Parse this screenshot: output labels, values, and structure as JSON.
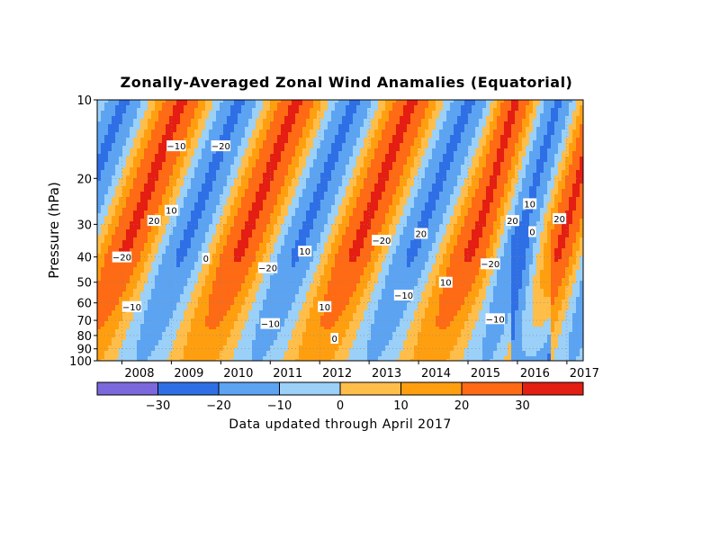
{
  "chart_data": {
    "type": "heatmap",
    "title": "Zonally-Averaged Zonal Wind Anamalies (Equatorial)",
    "ylabel": "Pressure (hPa)",
    "footer": "Data updated through April 2017",
    "y_scale": "log",
    "y_reversed": true,
    "ylim": [
      100,
      10
    ],
    "y_ticks": [
      "10",
      "20",
      "30",
      "40",
      "50",
      "60",
      "70",
      "80",
      "90",
      "100"
    ],
    "y_tick_values": [
      10,
      20,
      30,
      40,
      50,
      60,
      70,
      80,
      90,
      100
    ],
    "x_ticks": [
      "2008",
      "2009",
      "2010",
      "2011",
      "2012",
      "2013",
      "2014",
      "2015",
      "2016",
      "2017"
    ],
    "xlim": [
      2007.5,
      2017.33
    ],
    "grid": true,
    "colorbar": {
      "boundaries": [
        -30,
        -20,
        -10,
        0,
        10,
        20,
        30
      ],
      "labels": [
        "-30",
        "-20",
        "-10",
        "0",
        "10",
        "20",
        "30"
      ],
      "colors": [
        "#7b68dc",
        "#2f6fe6",
        "#5ca4f2",
        "#9bd0f8",
        "#ffbe4a",
        "#ff9f10",
        "#ff6a14",
        "#e41e12"
      ]
    },
    "contour_labels": [
      {
        "text": "-10",
        "t": 2009.1,
        "p": 15
      },
      {
        "text": "-20",
        "t": 2010.0,
        "p": 15
      },
      {
        "text": "10",
        "t": 2009.0,
        "p": 26.5
      },
      {
        "text": "20",
        "t": 2008.65,
        "p": 29
      },
      {
        "text": "-20",
        "t": 2008.0,
        "p": 40
      },
      {
        "text": "0",
        "t": 2009.7,
        "p": 40.5
      },
      {
        "text": "-20",
        "t": 2010.95,
        "p": 44
      },
      {
        "text": "10",
        "t": 2011.7,
        "p": 38
      },
      {
        "text": "-10",
        "t": 2008.2,
        "p": 62
      },
      {
        "text": "10",
        "t": 2012.1,
        "p": 62
      },
      {
        "text": "-10",
        "t": 2011.0,
        "p": 72
      },
      {
        "text": "0",
        "t": 2012.3,
        "p": 82
      },
      {
        "text": "-20",
        "t": 2013.25,
        "p": 34.5
      },
      {
        "text": "20",
        "t": 2014.05,
        "p": 32.5
      },
      {
        "text": "-10",
        "t": 2013.7,
        "p": 56
      },
      {
        "text": "10",
        "t": 2014.55,
        "p": 50
      },
      {
        "text": "20",
        "t": 2015.9,
        "p": 29
      },
      {
        "text": "10",
        "t": 2016.25,
        "p": 25
      },
      {
        "text": "0",
        "t": 2016.3,
        "p": 32
      },
      {
        "text": "20",
        "t": 2016.85,
        "p": 28.5
      },
      {
        "text": "-20",
        "t": 2015.45,
        "p": 42.5
      },
      {
        "text": "-10",
        "t": 2015.55,
        "p": 69
      }
    ]
  }
}
